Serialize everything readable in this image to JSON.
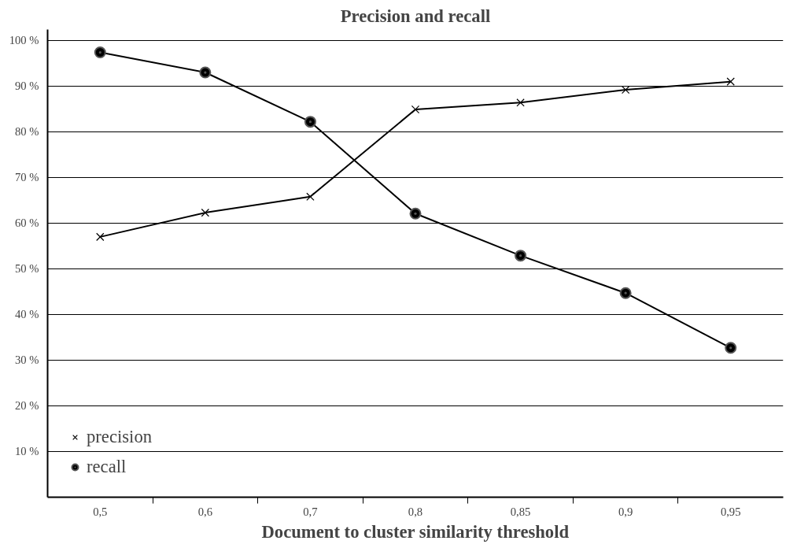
{
  "chart_data": {
    "type": "line",
    "title": "Precision and recall",
    "xlabel": "Document to cluster similarity threshold",
    "categories": [
      "0,5",
      "0,6",
      "0,7",
      "0,8",
      "0,85",
      "0,9",
      "0,95"
    ],
    "series": [
      {
        "name": "precision",
        "color": "#000000",
        "marker": "cross",
        "values": [
          57.0,
          62.3,
          65.8,
          84.9,
          86.4,
          89.2,
          91.0
        ]
      },
      {
        "name": "recall",
        "color": "#000000",
        "marker": "circle",
        "values": [
          97.4,
          93.0,
          82.2,
          62.1,
          52.9,
          44.7,
          32.7
        ]
      }
    ],
    "ylim": [
      0,
      102.4
    ],
    "yticks": [
      {
        "value": 10,
        "label": "10 %"
      },
      {
        "value": 20,
        "label": "20 %"
      },
      {
        "value": 30,
        "label": "30 %"
      },
      {
        "value": 40,
        "label": "40 %"
      },
      {
        "value": 50,
        "label": "50 %"
      },
      {
        "value": 60,
        "label": "60 %"
      },
      {
        "value": 70,
        "label": "70 %"
      },
      {
        "value": 80,
        "label": "80 %"
      },
      {
        "value": 90,
        "label": "90 %"
      },
      {
        "value": 100,
        "label": "100 %"
      }
    ],
    "grid": "y",
    "legend": "bottom left",
    "line_style": "solid"
  }
}
